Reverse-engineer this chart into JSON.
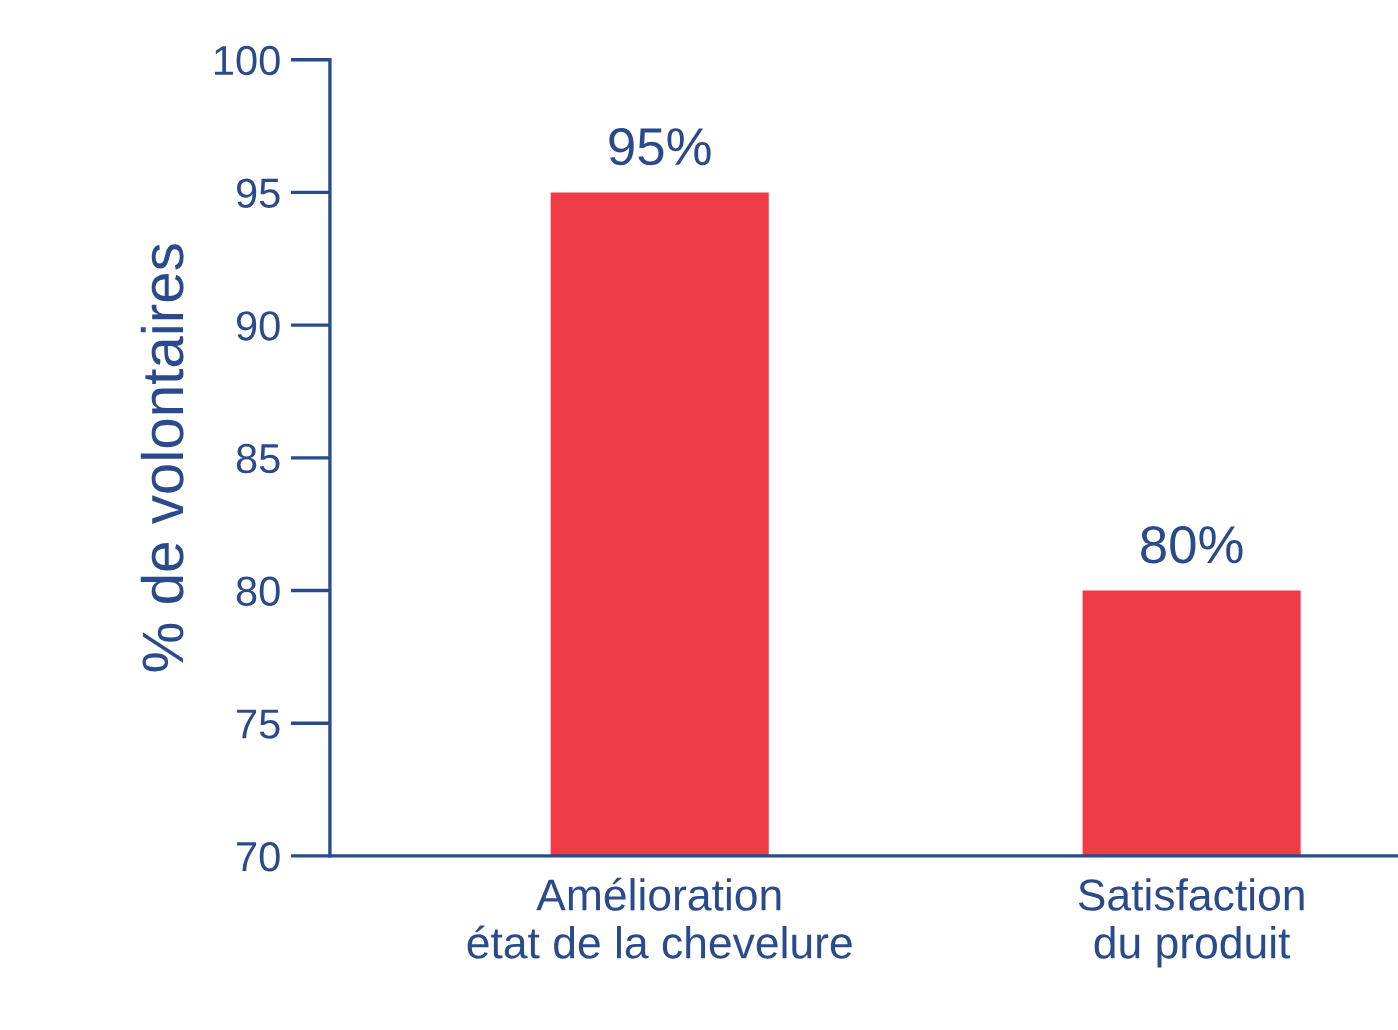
{
  "chart_data": {
    "type": "bar",
    "ylabel": "% de volontaires",
    "categories": [
      "Amélioration\nétat de la chevelure",
      "Satisfaction\ndu produit"
    ],
    "values": [
      95,
      80
    ],
    "value_labels": [
      "95%",
      "80%"
    ],
    "color": "#ef3b46",
    "ylim": [
      70,
      100
    ],
    "yticks": [
      70,
      75,
      80,
      85,
      90,
      95,
      100
    ],
    "grid": false,
    "legend": false
  }
}
